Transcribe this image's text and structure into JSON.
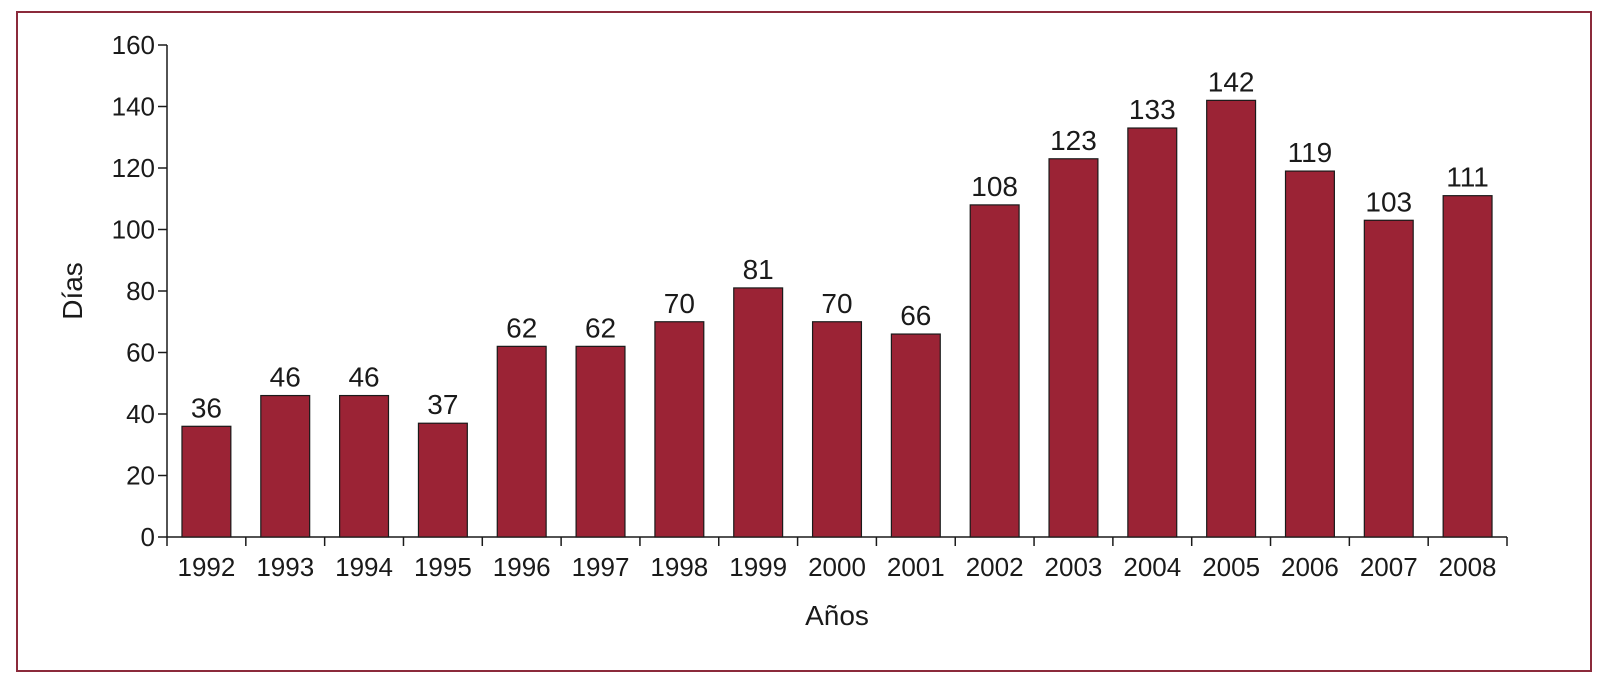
{
  "chart_data": {
    "type": "bar",
    "title": "",
    "xlabel": "Años",
    "ylabel": "Días",
    "categories": [
      "1992",
      "1993",
      "1994",
      "1995",
      "1996",
      "1997",
      "1998",
      "1999",
      "2000",
      "2001",
      "2002",
      "2003",
      "2004",
      "2005",
      "2006",
      "2007",
      "2008"
    ],
    "values": [
      36,
      46,
      46,
      37,
      62,
      62,
      70,
      81,
      70,
      66,
      108,
      123,
      133,
      142,
      119,
      103,
      111
    ],
    "ylim": [
      0,
      160
    ],
    "yticks": [
      0,
      20,
      40,
      60,
      80,
      100,
      120,
      140,
      160
    ],
    "grid": false,
    "legend": "none",
    "bar_color": "#9b2335",
    "data_labels": true
  }
}
